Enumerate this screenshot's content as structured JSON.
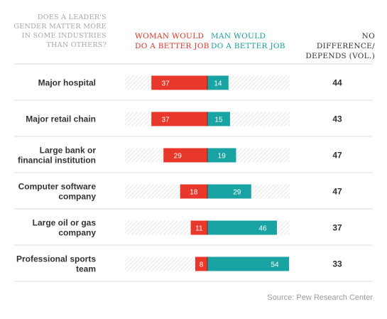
{
  "headers": {
    "question": "DOES A LEADER'S\nGENDER MATTER MORE\nIN SOME INDUSTRIES\nTHAN OTHERS?",
    "woman": "WOMAN WOULD\nDO A BETTER JOB",
    "man": "MAN WOULD\nDO A BETTER JOB",
    "no_difference": "NO DIFFERENCE/\nDEPENDS (VOL.)"
  },
  "source": "Source: Pew Research Center",
  "colors": {
    "woman": "#e8382b",
    "man": "#1aa3a3",
    "woman_header": "#d7372a",
    "man_header": "#1a9b9b",
    "background_hatch": "#e6e6e6",
    "divider": "#dddddd",
    "label_text": "#333333"
  },
  "chart_data": {
    "type": "bar",
    "subtype": "diverging-stacked",
    "categories": [
      "Major hospital",
      "Major retail chain",
      "Large bank or financial institution",
      "Computer software company",
      "Large oil or gas company",
      "Professional sports team"
    ],
    "category_lines": [
      [
        "Major hospital"
      ],
      [
        "Major retail chain"
      ],
      [
        "Large bank or",
        "financial institution"
      ],
      [
        "Computer software",
        "company"
      ],
      [
        "Large oil or gas",
        "company"
      ],
      [
        "Professional sports",
        "team"
      ]
    ],
    "series": [
      {
        "name": "WOMAN WOULD DO A BETTER JOB",
        "values": [
          37,
          37,
          29,
          18,
          11,
          8
        ]
      },
      {
        "name": "MAN WOULD DO A BETTER JOB",
        "values": [
          14,
          15,
          19,
          29,
          46,
          54
        ]
      },
      {
        "name": "NO DIFFERENCE/DEPENDS (VOL.)",
        "values": [
          44,
          43,
          47,
          47,
          37,
          33
        ]
      }
    ]
  }
}
